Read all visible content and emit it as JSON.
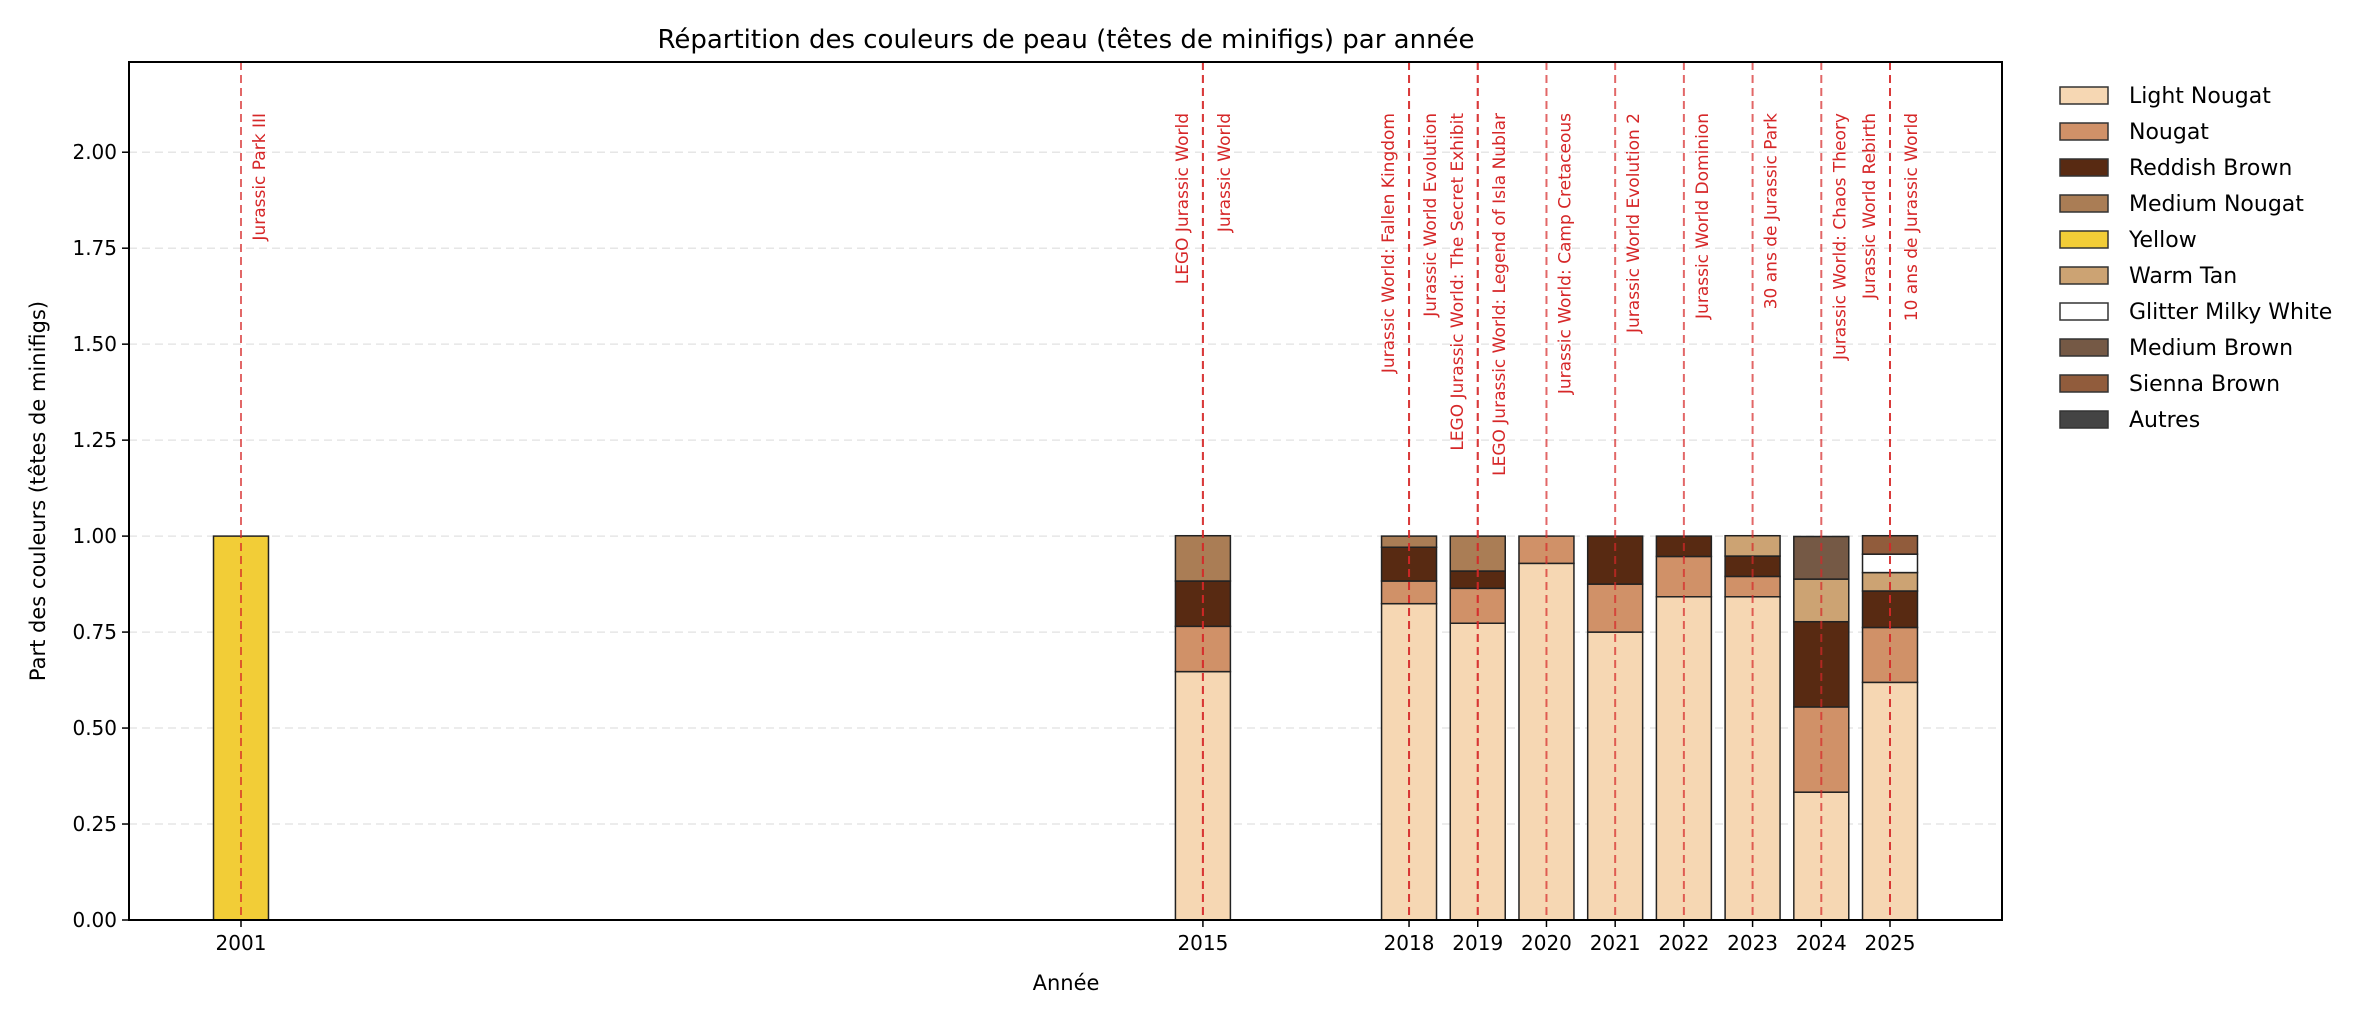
{
  "chart_data": {
    "type": "bar",
    "stacked": true,
    "title": "Répartition des couleurs de peau (têtes de minifigs) par année",
    "xlabel": "Année",
    "ylabel": "Part des couleurs (têtes de minifigs)",
    "ylim": [
      0,
      2.235
    ],
    "xlim": [
      1999.37,
      2026.63
    ],
    "yticks": [
      "0.00",
      "0.25",
      "0.50",
      "0.75",
      "1.00",
      "1.25",
      "1.50",
      "1.75",
      "2.00"
    ],
    "grid": "y-dashed",
    "legend_placement": "outside-right",
    "categories": [
      2001,
      2015,
      2018,
      2019,
      2020,
      2021,
      2022,
      2023,
      2024,
      2025
    ],
    "series": [
      {
        "name": "Light Nougat",
        "color": "#F6D7B3",
        "values": [
          0,
          0.647,
          0.824,
          0.773,
          0.929,
          0.75,
          0.842,
          0.842,
          0.333,
          0.619
        ]
      },
      {
        "name": "Nougat",
        "color": "#D09168",
        "values": [
          0,
          0.118,
          0.059,
          0.091,
          0.071,
          0.125,
          0.105,
          0.053,
          0.222,
          0.143
        ]
      },
      {
        "name": "Reddish Brown",
        "color": "#582A12",
        "values": [
          0,
          0.118,
          0.088,
          0.045,
          0,
          0.125,
          0.053,
          0.053,
          0.222,
          0.095
        ]
      },
      {
        "name": "Medium Nougat",
        "color": "#AA7D55",
        "values": [
          0,
          0.118,
          0.029,
          0.091,
          0,
          0,
          0,
          0,
          0,
          0
        ]
      },
      {
        "name": "Yellow",
        "color": "#F2CD37",
        "values": [
          1,
          0,
          0,
          0,
          0,
          0,
          0,
          0,
          0,
          0
        ]
      },
      {
        "name": "Warm Tan",
        "color": "#CCA373",
        "values": [
          0,
          0,
          0,
          0,
          0,
          0,
          0,
          0.053,
          0.111,
          0.048
        ]
      },
      {
        "name": "Glitter Milky White",
        "color": "#FFFFFF",
        "values": [
          0,
          0,
          0,
          0,
          0,
          0,
          0,
          0,
          0,
          0.048
        ]
      },
      {
        "name": "Medium Brown",
        "color": "#755945",
        "values": [
          0,
          0,
          0,
          0,
          0,
          0,
          0,
          0,
          0.111,
          0
        ]
      },
      {
        "name": "Sienna Brown",
        "color": "#915C3C",
        "values": [
          0,
          0,
          0,
          0,
          0,
          0,
          0,
          0,
          0,
          0.048
        ]
      },
      {
        "name": "Autres",
        "color": "#444444",
        "values": [
          0,
          0,
          0,
          0,
          0,
          0,
          0,
          0,
          0,
          0
        ]
      }
    ],
    "annotation_color": "#D62728",
    "annotations": [
      {
        "year": 2001,
        "labels": [
          "Jurassic Park III"
        ]
      },
      {
        "year": 2015,
        "labels": [
          "LEGO Jurassic World",
          "Jurassic World"
        ]
      },
      {
        "year": 2018,
        "labels": [
          "Jurassic World: Fallen Kingdom",
          "Jurassic World Evolution"
        ]
      },
      {
        "year": 2019,
        "labels": [
          "LEGO Jurassic World: The Secret Exhibit",
          "LEGO Jurassic World: Legend of Isla Nublar"
        ]
      },
      {
        "year": 2020,
        "labels": [
          "Jurassic World: Camp Cretaceous"
        ]
      },
      {
        "year": 2021,
        "labels": [
          "Jurassic World Evolution 2"
        ]
      },
      {
        "year": 2022,
        "labels": [
          "Jurassic World Dominion"
        ]
      },
      {
        "year": 2023,
        "labels": [
          "30 ans de Jurassic Park"
        ]
      },
      {
        "year": 2024,
        "labels": [
          "Jurassic World: Chaos Theory"
        ]
      },
      {
        "year": 2025,
        "labels": [
          "Jurassic World Rebirth",
          "10 ans de Jurassic World"
        ]
      }
    ]
  }
}
